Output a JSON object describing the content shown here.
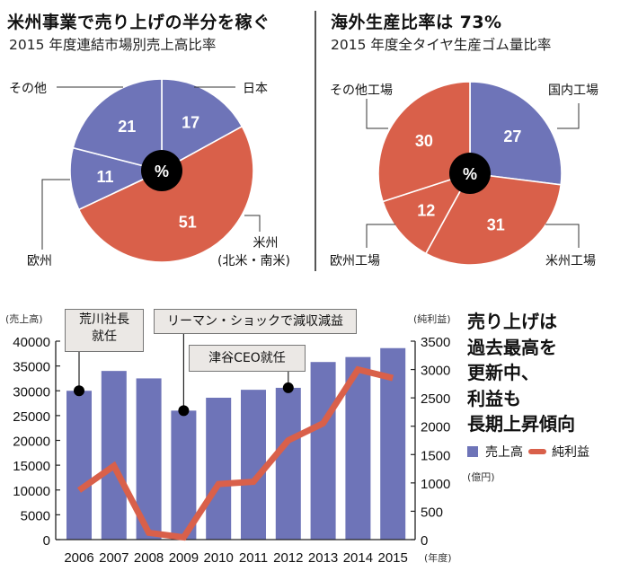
{
  "colors": {
    "blue": "#6e74b8",
    "red": "#d9604a",
    "center": "#000000",
    "anno_bg": "#ebe8e5"
  },
  "left_panel": {
    "title": "米州事業で売り上げの半分を稼ぐ",
    "subtitle": "2015 年度連結市場別売上高比率"
  },
  "right_panel": {
    "title": "海外生産比率は 73%",
    "subtitle": "2015 年度全タイヤ生産ゴム量比率"
  },
  "bottom_panel": {
    "headline_lines": [
      "売り上げは",
      "過去最高を",
      "更新中、",
      "利益も",
      "長期上昇傾向"
    ],
    "legend": {
      "bar_label": "売上高",
      "line_label": "純利益"
    },
    "unit_note": "(億円)",
    "annotations": [
      {
        "text_lines": [
          "荒川社長",
          "就任"
        ],
        "year": "2006"
      },
      {
        "text_lines": [
          "リーマン・ショックで減収減益"
        ],
        "year": "2009"
      },
      {
        "text_lines": [
          "津谷CEO就任"
        ],
        "year": "2012"
      }
    ]
  },
  "chart_data": [
    {
      "type": "pie",
      "title": "米州事業で売り上げの半分を稼ぐ",
      "subtitle": "2015 年度連結市場別売上高比率",
      "center_label": "%",
      "slices": [
        {
          "label": "日本",
          "value": 17,
          "color": "#6e74b8"
        },
        {
          "label": "米州\n(北米・南米)",
          "label_lines": [
            "米州",
            "(北米・南米)"
          ],
          "value": 51,
          "color": "#d9604a"
        },
        {
          "label": "欧州",
          "value": 11,
          "color": "#6e74b8"
        },
        {
          "label": "その他",
          "value": 21,
          "color": "#6e74b8"
        }
      ]
    },
    {
      "type": "pie",
      "title": "海外生産比率は 73%",
      "subtitle": "2015 年度全タイヤ生産ゴム量比率",
      "center_label": "%",
      "slices": [
        {
          "label": "国内工場",
          "value": 27,
          "color": "#6e74b8"
        },
        {
          "label": "米州工場",
          "value": 31,
          "color": "#d9604a"
        },
        {
          "label": "欧州工場",
          "value": 12,
          "color": "#d9604a"
        },
        {
          "label": "その他工場",
          "value": 30,
          "color": "#d9604a"
        }
      ]
    },
    {
      "type": "bar+line",
      "x_label": "(年度)",
      "categories": [
        "2006",
        "2007",
        "2008",
        "2009",
        "2010",
        "2011",
        "2012",
        "2013",
        "2014",
        "2015"
      ],
      "series": [
        {
          "name": "売上高",
          "type": "bar",
          "axis": "left",
          "values": [
            30000,
            34000,
            32500,
            26000,
            28600,
            30200,
            30600,
            35800,
            36800,
            38600
          ]
        },
        {
          "name": "純利益",
          "type": "line",
          "axis": "right",
          "values": [
            870,
            1300,
            120,
            40,
            980,
            1020,
            1750,
            2050,
            3000,
            2850
          ]
        }
      ],
      "y_left": {
        "label": "(売上高)",
        "range": [
          0,
          40000
        ],
        "ticks": [
          0,
          5000,
          10000,
          15000,
          20000,
          25000,
          30000,
          35000,
          40000
        ]
      },
      "y_right": {
        "label": "(純利益)",
        "range": [
          0,
          3500
        ],
        "ticks": [
          0,
          500,
          1000,
          1500,
          2000,
          2500,
          3000,
          3500
        ]
      },
      "unit": "(億円)",
      "grid": false,
      "legend_position": "right"
    }
  ]
}
